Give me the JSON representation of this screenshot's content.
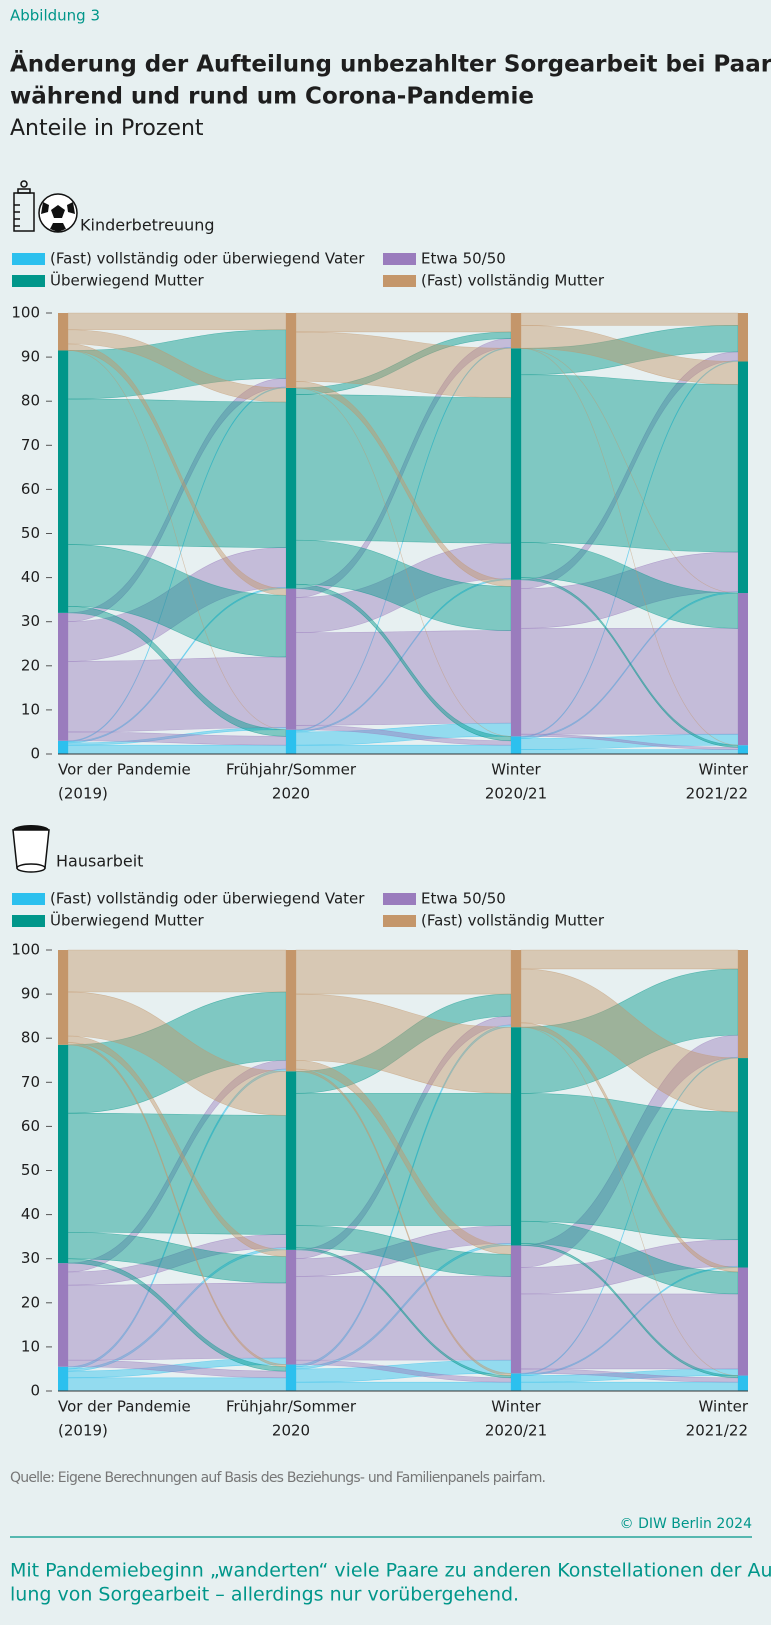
{
  "figure_label": "Abbildung 3",
  "title_lines": [
    "Änderung der Aufteilung unbezahlter Sorgearbeit bei Paaren",
    "während und rund um Corona-Pandemie"
  ],
  "subtitle": "Anteile in Prozent",
  "source": "Quelle: Eigene Berechnungen auf Basis des Beziehungs- und Familienpanels pairfam.",
  "copyright": "© DIW Berlin 2024",
  "caption_lines": [
    "Mit Pandemiebeginn „wanderten“ viele Paare zu anderen Konstellationen der Auftei-",
    "lung von Sorgearbeit – allerdings nur vorübergehend."
  ],
  "chart_data": [
    {
      "type": "alluvial",
      "heading": "Kinderbetreuung",
      "categories": [
        [
          "Vor der Pandemie",
          "(2019)"
        ],
        [
          "Frühjahr/Sommer",
          "2020"
        ],
        [
          "Winter",
          "2020/21"
        ],
        [
          "Winter",
          "2021/22"
        ]
      ],
      "series": [
        {
          "name": "(Fast) vollständig oder überwiegend Vater",
          "color": "#2cc0ee",
          "values": [
            3,
            5.5,
            4,
            2
          ]
        },
        {
          "name": "Etwa 50/50",
          "color": "#9a7cbd",
          "values": [
            29,
            32,
            35.5,
            34.5
          ]
        },
        {
          "name": "Überwiegend Mutter",
          "color": "#00968a",
          "values": [
            59.5,
            45.5,
            52.5,
            52.5
          ]
        },
        {
          "name": "(Fast) vollständig Mutter",
          "color": "#c4966a",
          "values": [
            8.5,
            17,
            8,
            11
          ]
        }
      ],
      "flows": [
        [
          [
            2,
            0.5,
            0.3,
            0.2
          ],
          [
            2,
            16,
            9,
            2
          ],
          [
            1.5,
            14,
            33,
            11
          ],
          [
            0,
            1.5,
            3.2,
            3.8
          ]
        ],
        [
          [
            2,
            3,
            0.3,
            0.2
          ],
          [
            1,
            21,
            8,
            2
          ],
          [
            1,
            10,
            33,
            1.5
          ],
          [
            0,
            1.5,
            11.2,
            4.3
          ]
        ],
        [
          [
            1,
            2.5,
            0.3,
            0.2
          ],
          [
            0.5,
            24,
            9,
            2
          ],
          [
            0.5,
            8,
            38,
            6
          ],
          [
            0,
            0,
            5.2,
            2.8
          ]
        ]
      ],
      "ylim": [
        0,
        100
      ],
      "yticks": [
        0,
        10,
        20,
        30,
        40,
        50,
        60,
        70,
        80,
        90,
        100
      ]
    },
    {
      "type": "alluvial",
      "heading": "Hausarbeit",
      "categories": [
        [
          "Vor der Pandemie",
          "(2019)"
        ],
        [
          "Frühjahr/Sommer",
          "2020"
        ],
        [
          "Winter",
          "2020/21"
        ],
        [
          "Winter",
          "2021/22"
        ]
      ],
      "series": [
        {
          "name": "(Fast) vollständig oder überwiegend Vater",
          "color": "#2cc0ee",
          "values": [
            5.5,
            6,
            4,
            3.5
          ]
        },
        {
          "name": "Etwa 50/50",
          "color": "#9a7cbd",
          "values": [
            23.5,
            26,
            29,
            24.5
          ]
        },
        {
          "name": "Überwiegend Mutter",
          "color": "#00968a",
          "values": [
            49.5,
            40.5,
            49.5,
            47.5
          ]
        },
        {
          "name": "(Fast) vollständig Mutter",
          "color": "#c4966a",
          "values": [
            21.5,
            27.5,
            17.5,
            24.5
          ]
        }
      ],
      "flows": [
        [
          [
            3,
            1.5,
            0.5,
            0.5
          ],
          [
            1.5,
            17,
            3,
            2
          ],
          [
            1,
            6,
            27,
            15.5
          ],
          [
            0.5,
            1.5,
            10,
            9.5
          ]
        ],
        [
          [
            2,
            3,
            0.5,
            0.5
          ],
          [
            1,
            19,
            4,
            2
          ],
          [
            0.5,
            5,
            30,
            5
          ],
          [
            0.5,
            2,
            15,
            10
          ]
        ],
        [
          [
            2,
            1.5,
            0.3,
            0.2
          ],
          [
            1,
            17,
            6,
            5
          ],
          [
            0.5,
            5,
            29,
            15
          ],
          [
            0,
            1,
            12.2,
            4.3
          ]
        ]
      ],
      "ylim": [
        0,
        100
      ],
      "yticks": [
        0,
        10,
        20,
        30,
        40,
        50,
        60,
        70,
        80,
        90,
        100
      ]
    }
  ]
}
